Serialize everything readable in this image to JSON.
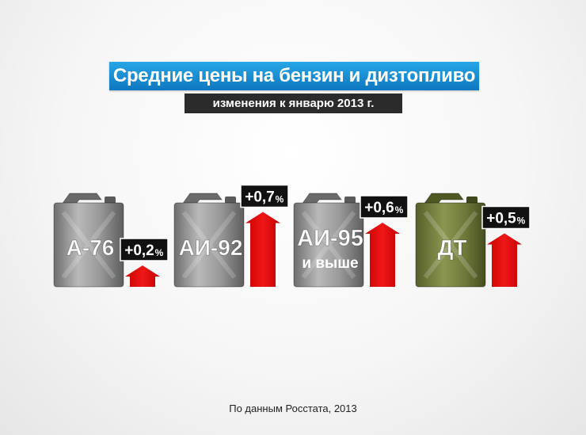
{
  "header": {
    "title": "Средние цены на бензин и дизтопливо",
    "subtitle": "изменения к январю 2013 г."
  },
  "footer": {
    "source": "По данным Росстата, 2013"
  },
  "colors": {
    "title_bg": "#1a8fd6",
    "subtitle_bg": "#2b2b2b",
    "arrow": "#e01010",
    "label_bg": "#111111",
    "canister_grey": "#8a8a8a",
    "canister_green": "#6f7a3a"
  },
  "chart_data": {
    "type": "bar",
    "categories": [
      {
        "fuel": "А-76",
        "fuel_sub": ""
      },
      {
        "fuel": "АИ-92",
        "fuel_sub": ""
      },
      {
        "fuel": "АИ-95",
        "fuel_sub": "и выше"
      },
      {
        "fuel": "ДТ",
        "fuel_sub": ""
      }
    ],
    "values": [
      0.2,
      0.7,
      0.6,
      0.5
    ],
    "value_labels": [
      "+0,2",
      "+0,7",
      "+0,6",
      "+0,5"
    ],
    "unit": "%",
    "canister_style": [
      "grey",
      "grey",
      "grey",
      "green"
    ]
  }
}
